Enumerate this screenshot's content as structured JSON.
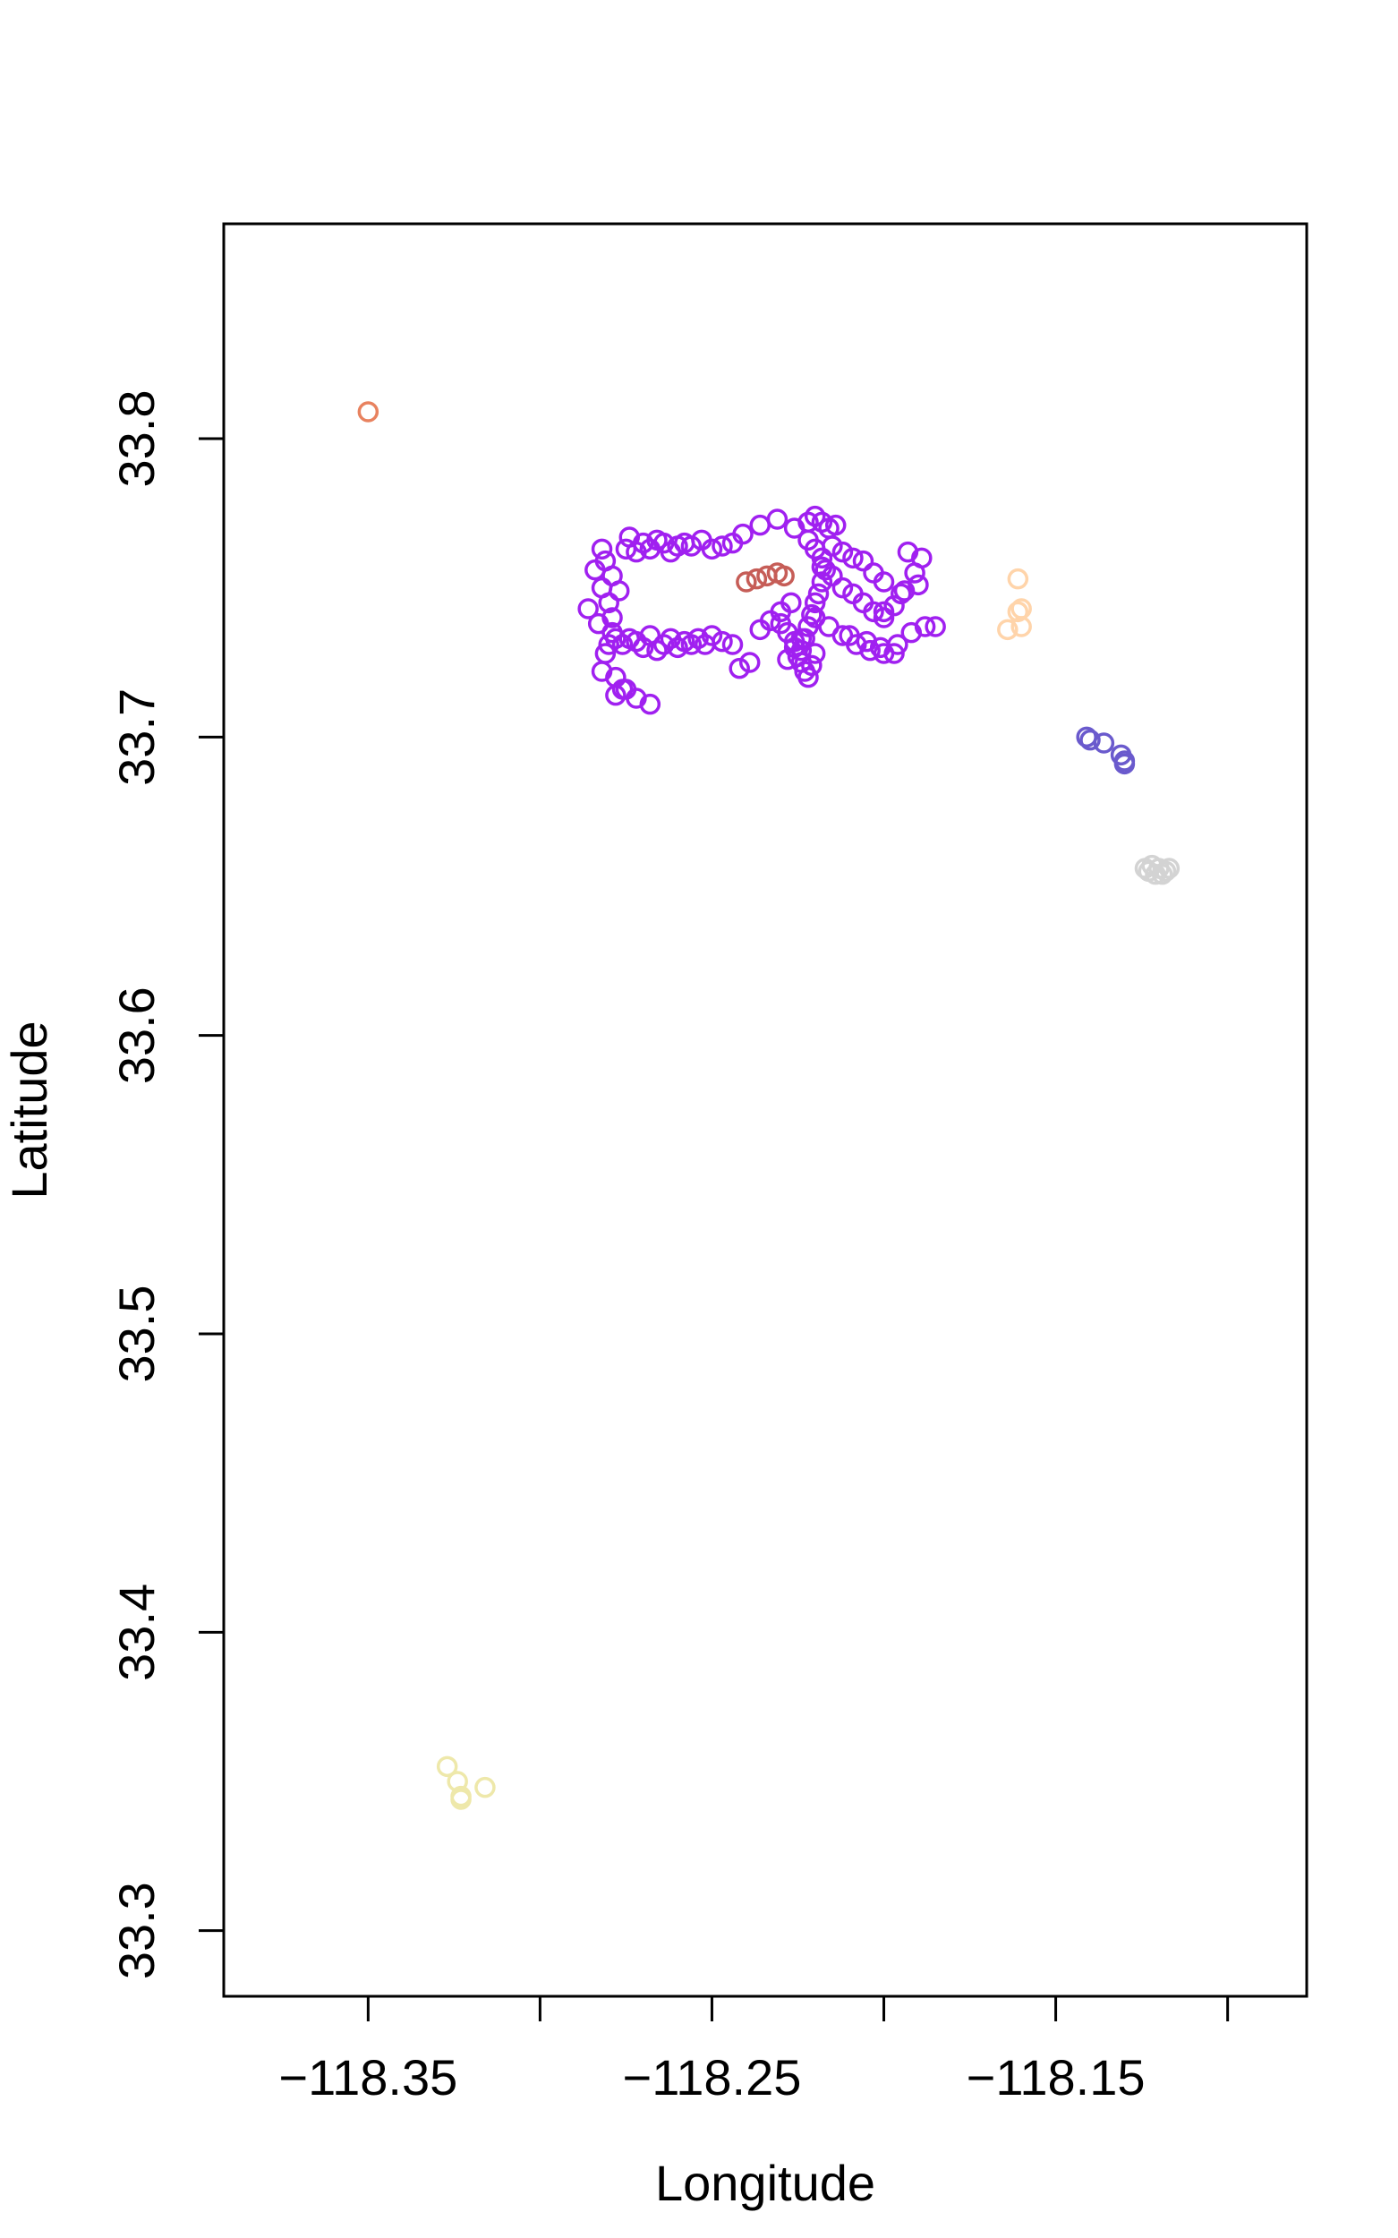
{
  "chart_data": {
    "type": "scatter",
    "title": "",
    "xlabel": "Longitude",
    "ylabel": "Latitude",
    "xlim": [
      -118.392,
      -118.077
    ],
    "ylim": [
      33.278,
      33.872
    ],
    "xticks": [
      -118.35,
      -118.3,
      -118.25,
      -118.2,
      -118.15,
      -118.1
    ],
    "xtick_labels": [
      "−118.35",
      "",
      "−118.25",
      "",
      "−118.15",
      ""
    ],
    "yticks": [
      33.3,
      33.4,
      33.5,
      33.6,
      33.7,
      33.8
    ],
    "ytick_labels": [
      "33.3",
      "33.4",
      "33.5",
      "33.6",
      "33.7",
      "33.8"
    ],
    "grid": false,
    "legend": "none",
    "series": [
      {
        "color": "#a020f0",
        "x": [
          -118.282,
          -118.281,
          -118.279,
          -118.277,
          -118.275,
          -118.274,
          -118.272,
          -118.27,
          -118.268,
          -118.266,
          -118.264,
          -118.262,
          -118.26,
          -118.258,
          -118.256,
          -118.253,
          -118.25,
          -118.247,
          -118.244,
          -118.284,
          -118.282,
          -118.28,
          -118.279,
          -118.279,
          -118.28,
          -118.281,
          -118.282,
          -118.278,
          -118.276,
          -118.278,
          -118.276,
          -118.274,
          -118.272,
          -118.27,
          -118.268,
          -118.266,
          -118.264,
          -118.262,
          -118.26,
          -118.258,
          -118.256,
          -118.254,
          -118.252,
          -118.25,
          -118.247,
          -118.244,
          -118.286,
          -118.283,
          -118.278,
          -118.275,
          -118.272,
          -118.268,
          -118.241,
          -118.236,
          -118.231,
          -118.226,
          -118.222,
          -118.22,
          -118.218,
          -118.216,
          -118.214,
          -118.222,
          -118.22,
          -118.218,
          -118.217,
          -118.218,
          -118.219,
          -118.22,
          -118.221,
          -118.222,
          -118.223,
          -118.224,
          -118.23,
          -118.228,
          -118.226,
          -118.225,
          -118.224,
          -118.223,
          -118.222,
          -118.221,
          -118.22,
          -118.226,
          -118.228,
          -118.224,
          -118.218,
          -118.215,
          -118.212,
          -118.209,
          -118.206,
          -118.203,
          -118.2,
          -118.197,
          -118.194,
          -118.191,
          -118.215,
          -118.212,
          -118.209,
          -118.206,
          -118.203,
          -118.2,
          -118.212,
          -118.208,
          -118.204,
          -118.2,
          -118.196,
          -118.192,
          -118.188,
          -118.242,
          -118.239,
          -118.236,
          -118.233,
          -118.23,
          -118.227,
          -118.22,
          -118.216,
          -118.21,
          -118.205,
          -118.201,
          -118.197,
          -118.193,
          -118.189,
          -118.185,
          -118.2,
          -118.195,
          -118.19
        ],
        "y": [
          33.763,
          33.759,
          33.754,
          33.749,
          33.763,
          33.767,
          33.762,
          33.765,
          33.763,
          33.766,
          33.765,
          33.762,
          33.764,
          33.765,
          33.764,
          33.766,
          33.763,
          33.764,
          33.765,
          33.756,
          33.75,
          33.745,
          33.74,
          33.735,
          33.731,
          33.728,
          33.722,
          33.72,
          33.716,
          33.733,
          33.731,
          33.733,
          33.732,
          33.73,
          33.734,
          33.729,
          33.731,
          33.733,
          33.73,
          33.732,
          33.731,
          33.733,
          33.731,
          33.734,
          33.732,
          33.731,
          33.743,
          33.738,
          33.714,
          33.716,
          33.713,
          33.711,
          33.768,
          33.771,
          33.773,
          33.77,
          33.772,
          33.774,
          33.772,
          33.77,
          33.771,
          33.766,
          33.763,
          33.76,
          33.756,
          33.752,
          33.748,
          33.745,
          33.741,
          33.737,
          33.733,
          33.729,
          33.738,
          33.735,
          33.73,
          33.727,
          33.725,
          33.722,
          33.72,
          33.724,
          33.728,
          33.732,
          33.726,
          33.733,
          33.757,
          33.754,
          33.75,
          33.748,
          33.745,
          33.742,
          33.74,
          33.744,
          33.749,
          33.755,
          33.764,
          33.762,
          33.76,
          33.759,
          33.755,
          33.752,
          33.734,
          33.731,
          33.729,
          33.728,
          33.731,
          33.735,
          33.737,
          33.723,
          33.725,
          33.736,
          33.739,
          33.742,
          33.745,
          33.74,
          33.737,
          33.734,
          33.732,
          33.73,
          33.728,
          33.762,
          33.76,
          33.737,
          33.742,
          33.748,
          33.751
        ]
      },
      {
        "color": "#c65d57",
        "x": [
          -118.24,
          -118.237,
          -118.234,
          -118.231,
          -118.229
        ],
        "y": [
          33.752,
          33.753,
          33.754,
          33.755,
          33.754
        ]
      },
      {
        "color": "#e8825f",
        "x": [
          -118.35
        ],
        "y": [
          33.809
        ]
      },
      {
        "color": "#ffd4aa",
        "x": [
          -118.161,
          -118.16,
          -118.161,
          -118.164,
          -118.16
        ],
        "y": [
          33.753,
          33.743,
          33.742,
          33.736,
          33.737
        ]
      },
      {
        "color": "#6a5acd",
        "x": [
          -118.141,
          -118.14,
          -118.136,
          -118.131,
          -118.13,
          -118.13
        ],
        "y": [
          33.7,
          33.699,
          33.698,
          33.694,
          33.692,
          33.691
        ]
      },
      {
        "color": "#d3d3d3",
        "x": [
          -118.124,
          -118.122,
          -118.12,
          -118.118,
          -118.117,
          -118.121,
          -118.119,
          -118.123
        ],
        "y": [
          33.656,
          33.657,
          33.656,
          33.655,
          33.656,
          33.654,
          33.654,
          33.655
        ]
      },
      {
        "color": "#eee8aa",
        "x": [
          -118.327,
          -118.324,
          -118.323,
          -118.323,
          -118.316
        ],
        "y": [
          33.355,
          33.35,
          33.345,
          33.344,
          33.348
        ]
      }
    ]
  }
}
